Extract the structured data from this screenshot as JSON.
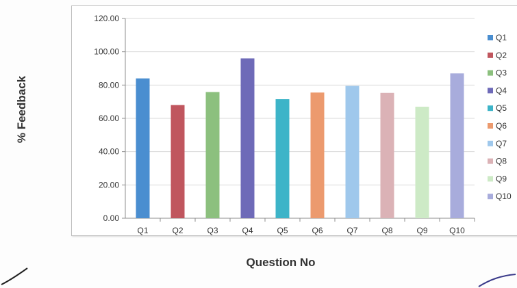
{
  "chart_data": {
    "type": "bar",
    "categories": [
      "Q1",
      "Q2",
      "Q3",
      "Q4",
      "Q5",
      "Q6",
      "Q7",
      "Q8",
      "Q9",
      "Q10"
    ],
    "values": [
      84,
      68,
      75.8,
      96,
      71.5,
      75.5,
      79.5,
      75.3,
      67,
      87
    ],
    "colors": [
      "#4a8ed0",
      "#c0565e",
      "#8cc07e",
      "#6e6ab8",
      "#3db4c8",
      "#ec9a6e",
      "#9fc8ec",
      "#dbb2b6",
      "#cdeac6",
      "#a8acdc"
    ],
    "yticks": [
      "0.00",
      "20.00",
      "40.00",
      "60.00",
      "80.00",
      "100.00",
      "120.00"
    ],
    "ylim": [
      0,
      120
    ],
    "xlabel": "Question No",
    "ylabel": "% Feedback",
    "legend": [
      "Q1",
      "Q2",
      "Q3",
      "Q4",
      "Q5",
      "Q6",
      "Q7",
      "Q8",
      "Q9",
      "Q10"
    ],
    "legend_position": "right",
    "grid": true
  }
}
